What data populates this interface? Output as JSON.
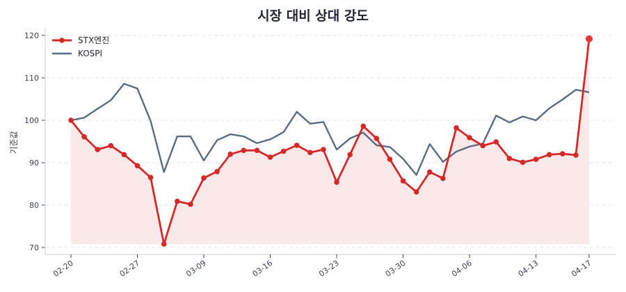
{
  "chart_data": {
    "type": "line",
    "title": "시장 대비 상대 강도",
    "xlabel": "",
    "ylabel": "기준값",
    "ylim": [
      68.5,
      122
    ],
    "yticks": [
      70,
      80,
      90,
      100,
      110,
      120
    ],
    "grid": "horizontal dashed",
    "legend_position": "upper left",
    "x": [
      "02-20",
      "02-23",
      "02-24",
      "02-25",
      "02-26",
      "02-27",
      "03-02",
      "03-04",
      "03-05",
      "03-06",
      "03-09",
      "03-10",
      "03-11",
      "03-12",
      "03-13",
      "03-16",
      "03-17",
      "03-18",
      "03-19",
      "03-20",
      "03-23",
      "03-24",
      "03-25",
      "03-26",
      "03-27",
      "03-30",
      "03-31",
      "04-01",
      "04-02",
      "04-03",
      "04-06",
      "04-07",
      "04-08",
      "04-09",
      "04-10",
      "04-13",
      "04-14",
      "04-15",
      "04-16",
      "04-17"
    ],
    "xticks": [
      {
        "index": 0,
        "label": "02-20"
      },
      {
        "index": 5,
        "label": "02-27"
      },
      {
        "index": 10,
        "label": "03-09"
      },
      {
        "index": 15,
        "label": "03-16"
      },
      {
        "index": 20,
        "label": "03-23"
      },
      {
        "index": 25,
        "label": "03-30"
      },
      {
        "index": 30,
        "label": "04-06"
      },
      {
        "index": 35,
        "label": "04-13"
      },
      {
        "index": 39,
        "label": "04-17"
      }
    ],
    "series": [
      {
        "name": "STX엔진",
        "color": "#d62828",
        "markers": true,
        "fill": "#fbe9e9",
        "values": [
          100.0,
          96.1,
          93.1,
          94.0,
          91.9,
          89.3,
          86.5,
          70.8,
          80.9,
          80.2,
          86.4,
          87.9,
          92.0,
          92.9,
          92.9,
          91.3,
          92.7,
          94.1,
          92.4,
          93.1,
          85.4,
          91.9,
          98.6,
          95.7,
          90.8,
          85.7,
          83.1,
          87.8,
          86.3,
          98.2,
          95.9,
          94.0,
          94.9,
          91.0,
          90.1,
          90.8,
          91.9,
          92.1,
          91.8,
          119.2
        ]
      },
      {
        "name": "KOSPI",
        "color": "#5b6b82",
        "markers": false,
        "values": [
          100.0,
          100.6,
          102.7,
          104.7,
          108.6,
          107.5,
          99.8,
          87.8,
          96.2,
          96.2,
          90.5,
          95.3,
          96.7,
          96.2,
          94.6,
          95.5,
          97.2,
          102.0,
          99.2,
          99.6,
          93.1,
          95.7,
          97.1,
          94.1,
          93.7,
          90.9,
          87.1,
          94.4,
          90.2,
          92.6,
          93.8,
          94.5,
          101.1,
          99.5,
          100.9,
          100.0,
          102.8,
          104.9,
          107.2,
          106.6
        ]
      }
    ]
  }
}
